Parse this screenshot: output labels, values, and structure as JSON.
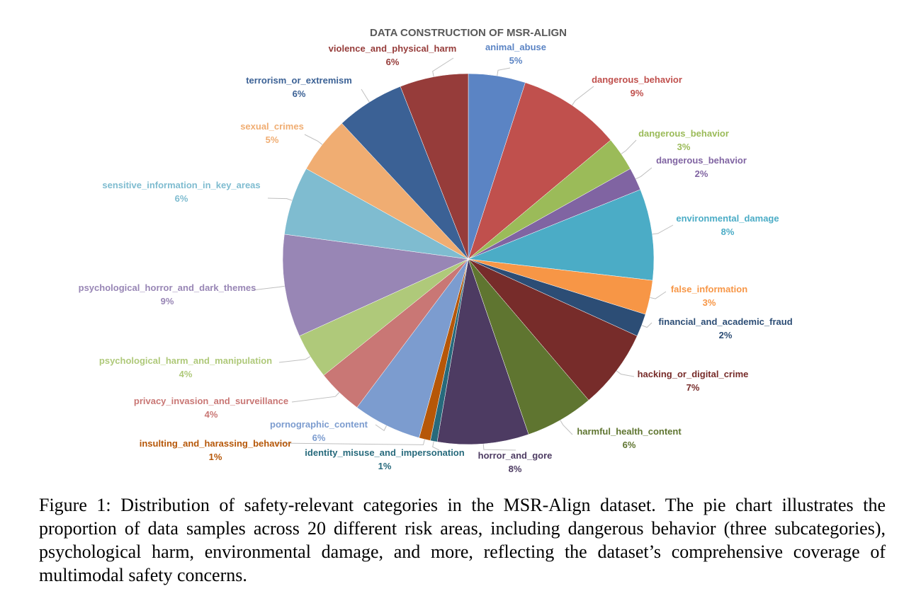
{
  "caption": "Figure 1: Distribution of safety-relevant categories in the MSR-Align dataset. The pie chart illustrates the proportion of data samples across 20 different risk areas, including dangerous behavior (three subcategories), psychological harm, environmental damage, and more, reflecting the dataset’s comprehensive coverage of multimodal safety concerns.",
  "chart_data": {
    "type": "pie",
    "title": "DATA CONSTRUCTION OF MSR-ALIGN",
    "start_angle_deg": 0,
    "direction": "clockwise",
    "slices": [
      {
        "label": "animal_abuse",
        "value": 5,
        "pct_label": "5%",
        "color": "#5b84c4",
        "label_color": "#5b84c4"
      },
      {
        "label": "dangerous_behavior",
        "value": 9,
        "pct_label": "9%",
        "color": "#c0504d",
        "label_color": "#c0504d"
      },
      {
        "label": "dangerous_behavior",
        "value": 3,
        "pct_label": "3%",
        "color": "#9bbb59",
        "label_color": "#9bbb59"
      },
      {
        "label": "dangerous_behavior",
        "value": 2,
        "pct_label": "2%",
        "color": "#8064a2",
        "label_color": "#8064a2"
      },
      {
        "label": "environmental_damage",
        "value": 8,
        "pct_label": "8%",
        "color": "#4bacc6",
        "label_color": "#4bacc6"
      },
      {
        "label": "false_information",
        "value": 3,
        "pct_label": "3%",
        "color": "#f79646",
        "label_color": "#f79646"
      },
      {
        "label": "financial_and_academic_fraud",
        "value": 2,
        "pct_label": "2%",
        "color": "#2c4d75",
        "label_color": "#2c4d75"
      },
      {
        "label": "hacking_or_digital_crime",
        "value": 7,
        "pct_label": "7%",
        "color": "#772c2a",
        "label_color": "#772c2a"
      },
      {
        "label": "harmful_health_content",
        "value": 6,
        "pct_label": "6%",
        "color": "#5f7530",
        "label_color": "#5f7530"
      },
      {
        "label": "horror_and_gore",
        "value": 8,
        "pct_label": "8%",
        "color": "#4d3b62",
        "label_color": "#4d3b62"
      },
      {
        "label": "identity_misuse_and_impersonation",
        "value": 0.6,
        "pct_label": "1%",
        "color": "#276a7c",
        "label_color": "#276a7c"
      },
      {
        "label": "insulting_and_harassing_behavior",
        "value": 1,
        "pct_label": "1%",
        "color": "#b65708",
        "label_color": "#b65708"
      },
      {
        "label": "pornographic_content",
        "value": 6,
        "pct_label": "6%",
        "color": "#7c9ccf",
        "label_color": "#7c9ccf"
      },
      {
        "label": "privacy_invasion_and_surveillance",
        "value": 4,
        "pct_label": "4%",
        "color": "#c97775",
        "label_color": "#c97775"
      },
      {
        "label": "psychological_harm_and_manipulation",
        "value": 4,
        "pct_label": "4%",
        "color": "#afc97a",
        "label_color": "#afc97a"
      },
      {
        "label": "psychological_horror_and_dark_themes",
        "value": 9,
        "pct_label": "9%",
        "color": "#9886b5",
        "label_color": "#9886b5"
      },
      {
        "label": "sensitive_information_in_key_areas",
        "value": 6,
        "pct_label": "6%",
        "color": "#7fbcd0",
        "label_color": "#7fbcd0"
      },
      {
        "label": "sexual_crimes",
        "value": 5,
        "pct_label": "5%",
        "color": "#f0ad72",
        "label_color": "#f0ad72"
      },
      {
        "label": "terrorism_or_extremism",
        "value": 6,
        "pct_label": "6%",
        "color": "#3b6195",
        "label_color": "#3b6195"
      },
      {
        "label": "violence_and_physical_harm",
        "value": 6,
        "pct_label": "6%",
        "color": "#963c3a",
        "label_color": "#963c3a"
      }
    ]
  }
}
